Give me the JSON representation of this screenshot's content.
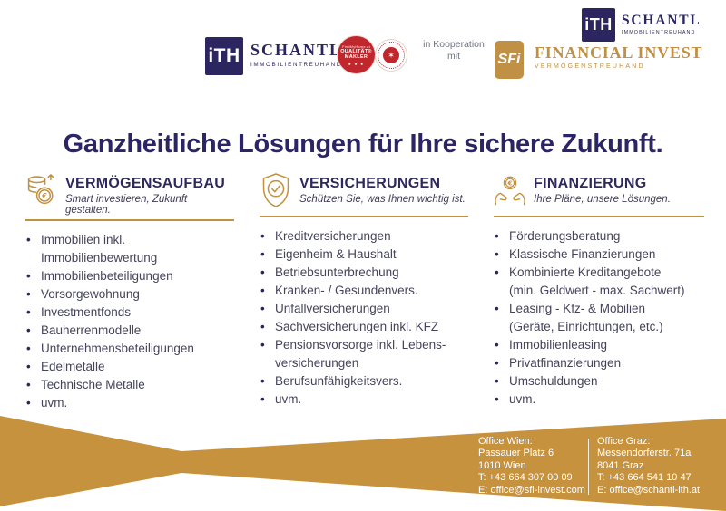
{
  "header": {
    "main_logo": {
      "mark": "iTH",
      "name": "SCHANTL",
      "tagline": "IMMOBILIENTREUHAND"
    },
    "quality_badge": {
      "top": "FindMyHome.at",
      "line1": "QUALITÄT®",
      "line2": "MAKLER",
      "stars": "★ ★ ★"
    },
    "austria_badge": {
      "emblem": "✶"
    },
    "cooperation_text": "in Kooperation mit",
    "partner_logo": {
      "mark": "SFi",
      "name": "FINANCIAL INVEST",
      "tagline": "VERMÖGENSTREUHAND"
    },
    "corner_logo": {
      "mark": "iTH",
      "name": "SCHANTL",
      "tagline": "IMMOBILIENTREUHAND"
    }
  },
  "title": "Ganzheitliche Lösungen für Ihre sichere Zukunft.",
  "columns": [
    {
      "icon": "coins-growth-icon",
      "title": "VERMÖGENSAUFBAU",
      "subtitle": "Smart investieren, Zukunft gestalten.",
      "items": [
        [
          "Immobilien inkl.",
          "Immobilienbewertung"
        ],
        [
          "Immobilienbeteiligungen"
        ],
        [
          "Vorsorgewohnung"
        ],
        [
          "Investmentfonds"
        ],
        [
          "Bauherrenmodelle"
        ],
        [
          "Unternehmensbeteiligungen"
        ],
        [
          "Edelmetalle"
        ],
        [
          "Technische Metalle"
        ],
        [
          "uvm."
        ]
      ]
    },
    {
      "icon": "shield-check-icon",
      "title": "VERSICHERUNGEN",
      "subtitle": "Schützen Sie, was Ihnen wichtig ist.",
      "items": [
        [
          "Kreditversicherungen"
        ],
        [
          "Eigenheim & Haushalt"
        ],
        [
          "Betriebsunterbrechung"
        ],
        [
          "Kranken- / Gesundenvers."
        ],
        [
          "Unfallversicherungen"
        ],
        [
          "Sachversicherungen inkl. KFZ"
        ],
        [
          "Pensionsvorsorge inkl. Lebens-",
          "versicherungen"
        ],
        [
          "Berufsunfähigkeitsvers."
        ],
        [
          "uvm."
        ]
      ]
    },
    {
      "icon": "hands-coin-icon",
      "title": "FINANZIERUNG",
      "subtitle": "Ihre Pläne, unsere Lösungen.",
      "items": [
        [
          "Förderungsberatung"
        ],
        [
          "Klassische Finanzierungen"
        ],
        [
          "Kombinierte Kreditangebote",
          "(min. Geldwert - max. Sachwert)"
        ],
        [
          "Leasing - Kfz- & Mobilien",
          "(Geräte, Einrichtungen, etc.)"
        ],
        [
          "Immobilienleasing"
        ],
        [
          "Privatfinanzierungen"
        ],
        [
          "Umschuldungen"
        ],
        [
          "uvm."
        ]
      ]
    }
  ],
  "footer": {
    "office_wien": [
      "Office Wien:",
      "Passauer Platz 6",
      "1010 Wien",
      "T: +43 664 307 00 09",
      "E: office@sfi-invest.com"
    ],
    "office_graz": [
      "Office Graz:",
      "Messendorferstr. 71a",
      "8041 Graz",
      "T: +43 664 541 10 47",
      "E: office@schantl-ith.at"
    ]
  },
  "colors": {
    "navy": "#2b2660",
    "gold": "#c3913d",
    "footer_gold": "#c6923e",
    "badge_red": "#c0272d",
    "body_text": "#45445a"
  }
}
